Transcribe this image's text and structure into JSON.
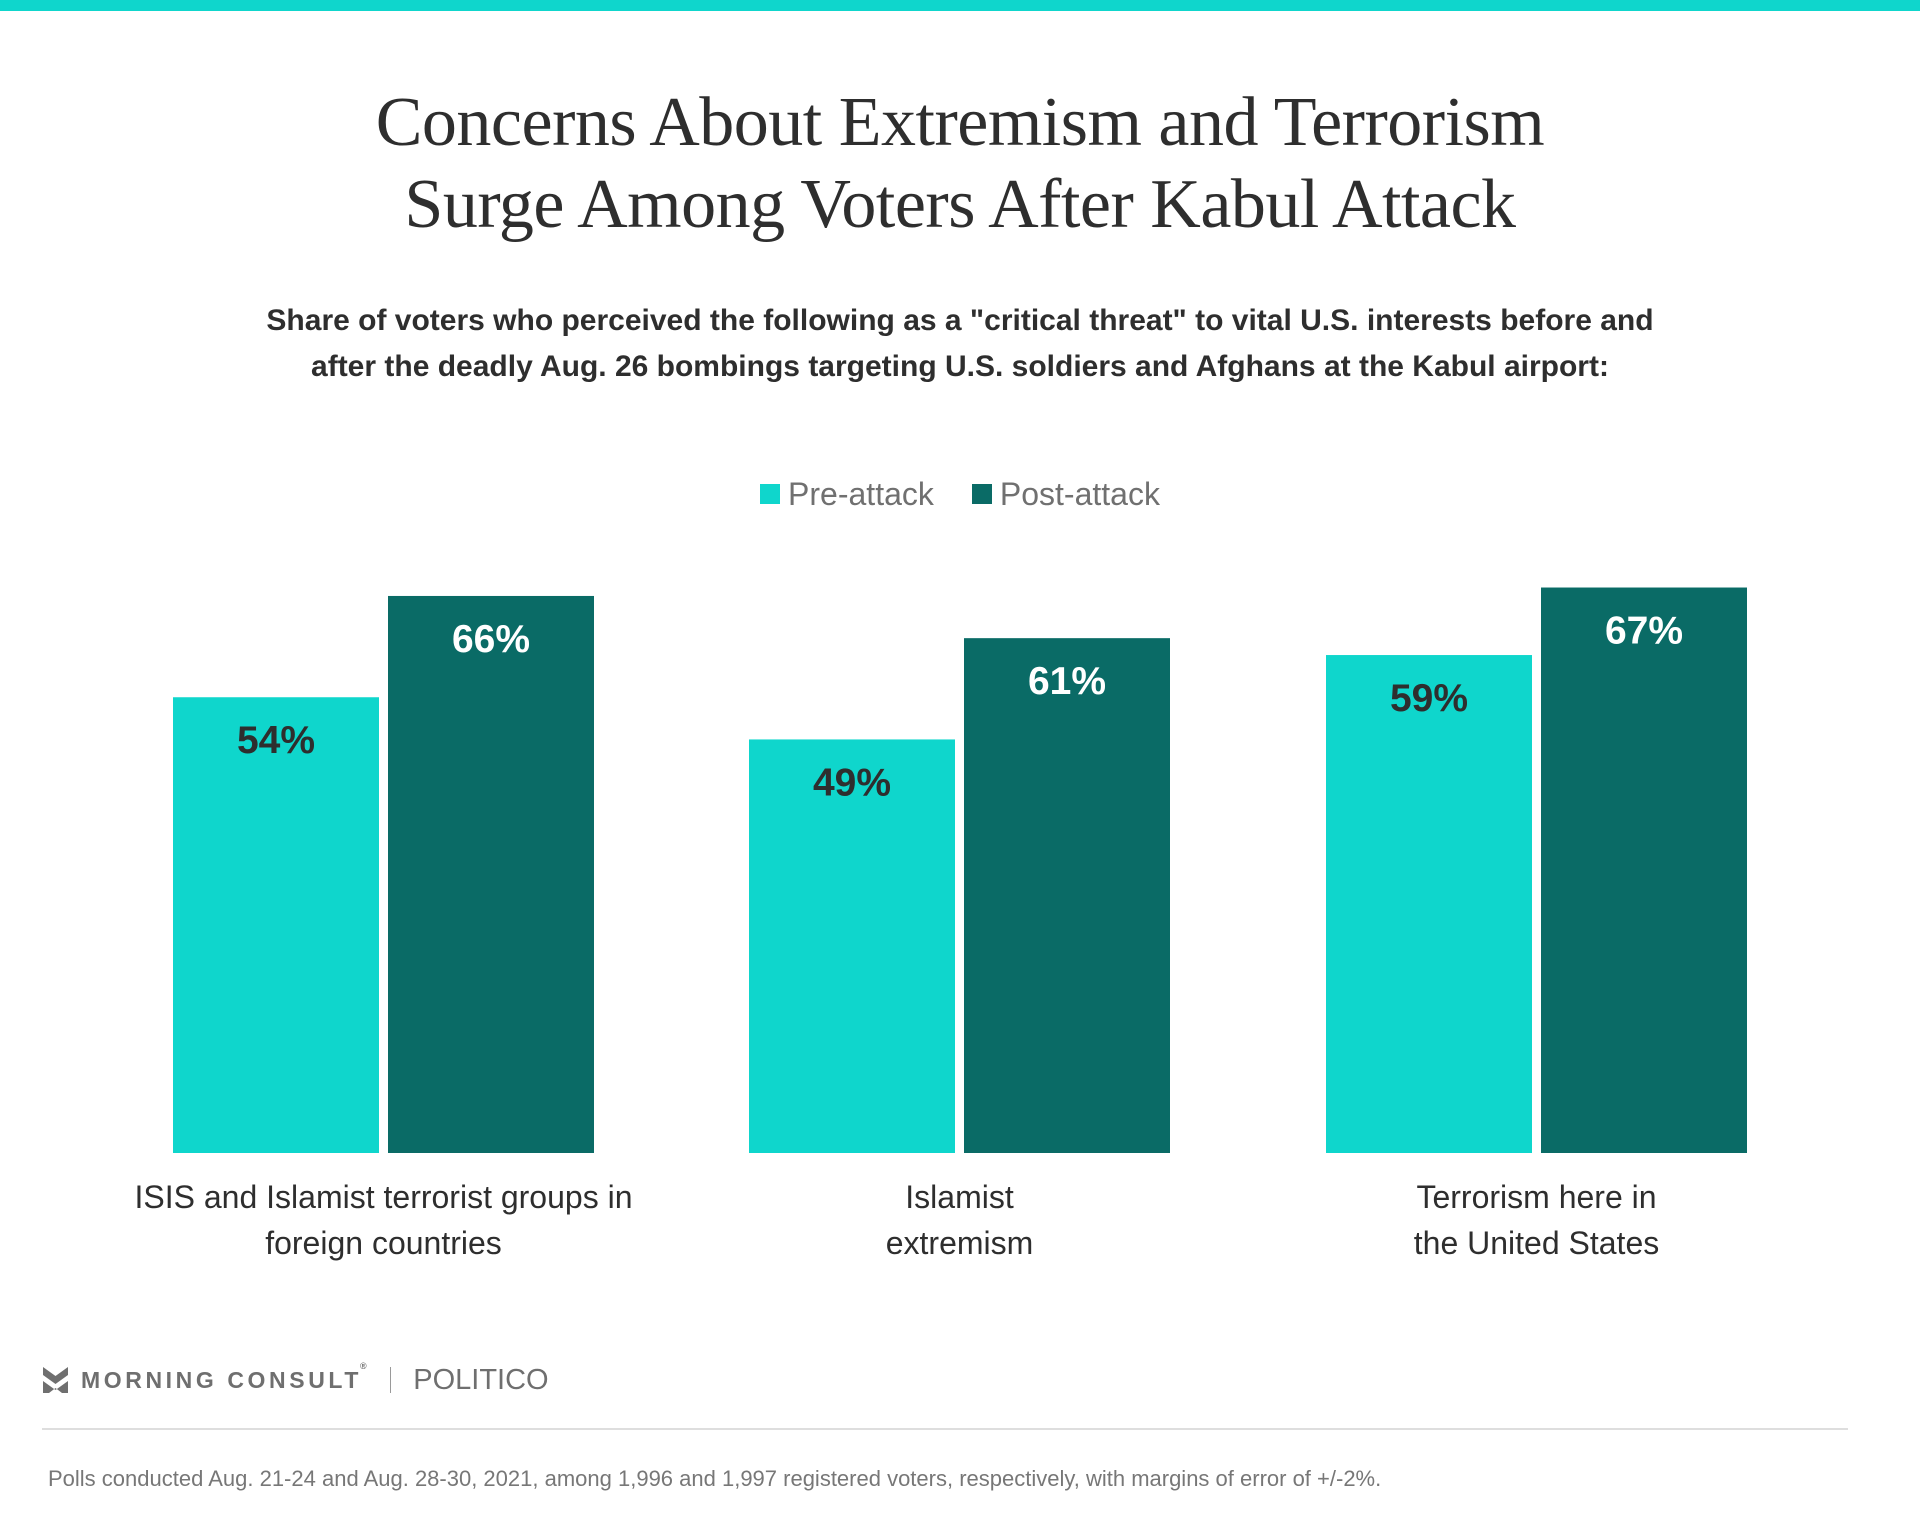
{
  "header": {
    "title_lines": [
      "Concerns About Extremism and Terrorism",
      "Surge Among Voters After Kabul Attack"
    ],
    "subtitle_lines": [
      "Share of voters who perceived the following as a \"critical threat\" to vital U.S. interests before and",
      "after the deadly Aug. 26 bombings targeting U.S. soldiers and Afghans at the Kabul airport:"
    ]
  },
  "colors": {
    "accent": "#0fd6cc",
    "pre_attack": "#0fd6cc",
    "post_attack": "#0a6b66",
    "pre_label": "#2e2e2e",
    "post_label": "#ffffff"
  },
  "chart_data": {
    "type": "bar",
    "title": "Concerns About Extremism and Terrorism Surge Among Voters After Kabul Attack",
    "xlabel": "",
    "ylabel": "",
    "ylim": [
      0,
      100
    ],
    "grid": false,
    "legend_position": "top-center",
    "categories": [
      [
        "ISIS and Islamist terrorist groups in",
        "foreign countries"
      ],
      [
        "Islamist",
        "extremism"
      ],
      [
        "Terrorism here in",
        "the United States"
      ]
    ],
    "series": [
      {
        "name": "Pre-attack",
        "values": [
          54,
          49,
          59
        ],
        "labels": [
          "54%",
          "49%",
          "59%"
        ]
      },
      {
        "name": "Post-attack",
        "values": [
          66,
          61,
          67
        ],
        "labels": [
          "66%",
          "61%",
          "67%"
        ]
      }
    ]
  },
  "footer": {
    "brand_primary": "MORNING CONSULT",
    "brand_registered": "®",
    "brand_partner": "POLITICO",
    "note": "Polls conducted Aug. 21-24 and Aug. 28-30, 2021, among 1,996 and 1,997 registered voters, respectively, with margins of error of +/-2%."
  }
}
